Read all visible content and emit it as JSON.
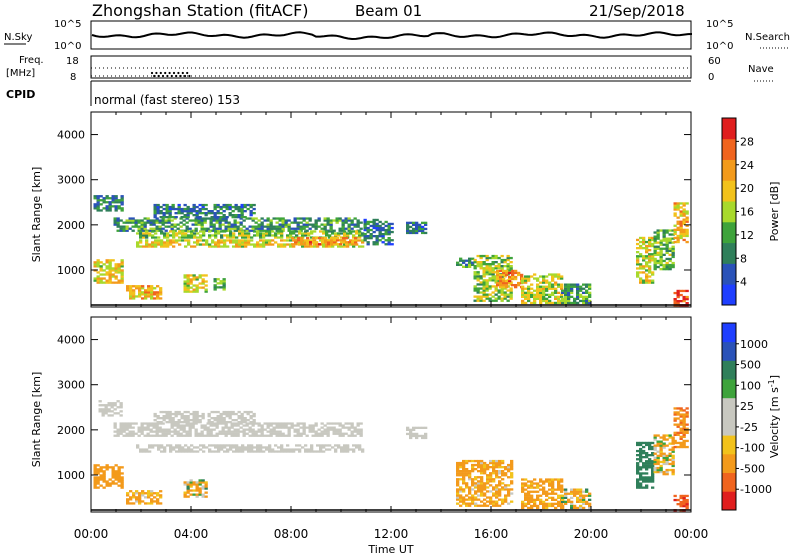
{
  "header": {
    "station": "Zhongshan Station (fitACF)",
    "beam": "Beam 01",
    "date": "21/Sep/2018"
  },
  "summary": {
    "nsky_label": "N.Sky",
    "nsky_ticks": [
      "10^5",
      "10^0"
    ],
    "nsearch_label": "N.Search",
    "nsearch_ticks": [
      "10^5",
      "10^0"
    ],
    "freq_label": "Freq.",
    "freq_unit": "[MHz]",
    "freq_ticks": [
      "18",
      "8"
    ],
    "nave_label": "Nave",
    "nave_ticks": [
      "60",
      "0"
    ],
    "cpid_label": "CPID",
    "cpid_text": "normal (fast stereo) 153"
  },
  "colors": {
    "power_scale": [
      "#1f3fff",
      "#2a52b8",
      "#2f7f5a",
      "#3ea33b",
      "#a8d92c",
      "#f2c21b",
      "#f39a1b",
      "#f0641e",
      "#e01e1e"
    ],
    "velocity_scale": [
      "#e01e1e",
      "#f0641e",
      "#f39a1b",
      "#f2c21b",
      "#c8c8c0",
      "#c8c8c0",
      "#3ea33b",
      "#2f7f5a",
      "#2a52b8",
      "#1f3fff"
    ],
    "ground_scatter": "#c8c8c0"
  },
  "chart_data": [
    {
      "type": "heatmap",
      "title": "",
      "xlabel": "Time UT",
      "ylabel": "Slant Range [km]",
      "xlim": [
        0,
        24
      ],
      "ylim": [
        180,
        4500
      ],
      "x_tick_labels": [
        "00:00",
        "04:00",
        "08:00",
        "12:00",
        "16:00",
        "20:00",
        "00:00"
      ],
      "y_tick_labels": [
        "1000",
        "2000",
        "3000",
        "4000"
      ],
      "colorbar": {
        "label": "Power [dB]",
        "ticks": [
          "4",
          "8",
          "12",
          "16",
          "20",
          "24",
          "28"
        ],
        "range": [
          0,
          30
        ]
      },
      "regions": [
        {
          "t0": 0.1,
          "t1": 1.2,
          "r0": 2300,
          "r1": 2650,
          "value": 8
        },
        {
          "t0": 0.9,
          "t1": 10.8,
          "r0": 1850,
          "r1": 2150,
          "value": 10
        },
        {
          "t0": 1.8,
          "t1": 10.8,
          "r0": 1700,
          "r1": 1870,
          "value": 14
        },
        {
          "t0": 1.8,
          "t1": 10.8,
          "r0": 1500,
          "r1": 1650,
          "value": 18
        },
        {
          "t0": 2.5,
          "t1": 6.5,
          "r0": 2150,
          "r1": 2450,
          "value": 8
        },
        {
          "t0": 8.0,
          "t1": 10.6,
          "r0": 1550,
          "r1": 1700,
          "value": 22
        },
        {
          "t0": 0.1,
          "t1": 1.3,
          "r0": 700,
          "r1": 1200,
          "value": 18
        },
        {
          "t0": 1.4,
          "t1": 2.8,
          "r0": 350,
          "r1": 650,
          "value": 20
        },
        {
          "t0": 3.7,
          "t1": 4.6,
          "r0": 500,
          "r1": 900,
          "value": 16
        },
        {
          "t0": 4.9,
          "t1": 5.3,
          "r0": 550,
          "r1": 800,
          "value": 12
        },
        {
          "t0": 10.9,
          "t1": 12.0,
          "r0": 1550,
          "r1": 2100,
          "value": 7
        },
        {
          "t0": 12.6,
          "t1": 13.4,
          "r0": 1800,
          "r1": 2050,
          "value": 8
        },
        {
          "t0": 14.6,
          "t1": 15.3,
          "r0": 1050,
          "r1": 1250,
          "value": 10
        },
        {
          "t0": 15.3,
          "t1": 16.8,
          "r0": 300,
          "r1": 1300,
          "value": 14
        },
        {
          "t0": 16.2,
          "t1": 17.2,
          "r0": 600,
          "r1": 1000,
          "value": 22
        },
        {
          "t0": 17.2,
          "t1": 18.8,
          "r0": 250,
          "r1": 900,
          "value": 16
        },
        {
          "t0": 18.8,
          "t1": 20.0,
          "r0": 250,
          "r1": 700,
          "value": 10
        },
        {
          "t0": 21.8,
          "t1": 22.5,
          "r0": 700,
          "r1": 1700,
          "value": 16
        },
        {
          "t0": 22.5,
          "t1": 23.3,
          "r0": 1000,
          "r1": 1900,
          "value": 12
        },
        {
          "t0": 23.3,
          "t1": 23.9,
          "r0": 1600,
          "r1": 2500,
          "value": 20
        },
        {
          "t0": 23.3,
          "t1": 23.9,
          "r0": 200,
          "r1": 550,
          "value": 28
        }
      ]
    },
    {
      "type": "heatmap",
      "title": "",
      "xlabel": "Time UT",
      "ylabel": "Slant Range [km]",
      "xlim": [
        0,
        24
      ],
      "ylim": [
        180,
        4500
      ],
      "x_tick_labels": [
        "00:00",
        "04:00",
        "08:00",
        "12:00",
        "16:00",
        "20:00",
        "00:00"
      ],
      "y_tick_labels": [
        "1000",
        "2000",
        "3000",
        "4000"
      ],
      "colorbar": {
        "label": "Velocity [m s",
        "label_sup": "-1",
        "label_end": "]",
        "ticks": [
          "1000",
          "500",
          "100",
          "25",
          "-25",
          "-100",
          "-500",
          "-1000"
        ],
        "range": [
          -1200,
          1200
        ]
      },
      "regions": [
        {
          "t0": 0.3,
          "t1": 1.2,
          "r0": 2300,
          "r1": 2650,
          "value": 0,
          "ground": true
        },
        {
          "t0": 0.9,
          "t1": 10.8,
          "r0": 1850,
          "r1": 2150,
          "value": 0,
          "ground": true
        },
        {
          "t0": 1.8,
          "t1": 10.8,
          "r0": 1500,
          "r1": 1650,
          "value": 0,
          "ground": true
        },
        {
          "t0": 2.5,
          "t1": 6.5,
          "r0": 2150,
          "r1": 2400,
          "value": 0,
          "ground": true
        },
        {
          "t0": 0.1,
          "t1": 1.3,
          "r0": 700,
          "r1": 1200,
          "value": -300
        },
        {
          "t0": 1.4,
          "t1": 2.8,
          "r0": 350,
          "r1": 650,
          "value": -200
        },
        {
          "t0": 3.7,
          "t1": 4.6,
          "r0": 500,
          "r1": 900,
          "value": -60
        },
        {
          "t0": 12.6,
          "t1": 13.4,
          "r0": 1800,
          "r1": 2050,
          "value": 0,
          "ground": true
        },
        {
          "t0": 14.6,
          "t1": 16.8,
          "r0": 300,
          "r1": 1300,
          "value": -200
        },
        {
          "t0": 17.2,
          "t1": 18.8,
          "r0": 250,
          "r1": 900,
          "value": -250
        },
        {
          "t0": 18.8,
          "t1": 20.0,
          "r0": 250,
          "r1": 700,
          "value": -80
        },
        {
          "t0": 21.8,
          "t1": 22.5,
          "r0": 700,
          "r1": 1700,
          "value": 300
        },
        {
          "t0": 22.5,
          "t1": 23.3,
          "r0": 1000,
          "r1": 1900,
          "value": -120
        },
        {
          "t0": 23.3,
          "t1": 23.9,
          "r0": 1600,
          "r1": 2500,
          "value": -400
        },
        {
          "t0": 23.3,
          "t1": 23.9,
          "r0": 200,
          "r1": 550,
          "value": -900
        }
      ]
    }
  ]
}
